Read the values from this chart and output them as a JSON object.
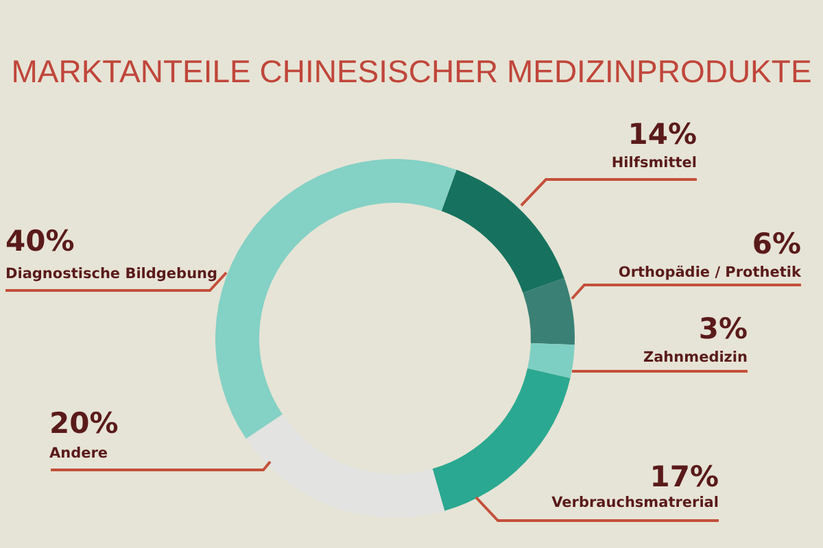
{
  "chart_data": {
    "type": "donut",
    "title": "MARKTANTEILE CHINESISCHER MEDIZINPRODUKTE",
    "categories": [
      "Hilfsmittel",
      "Orthopädie / Prothetik",
      "Zahnmedizin",
      "Verbrauchsmatrerial",
      "Andere",
      "Diagnostische Bildgebung"
    ],
    "values": [
      14,
      6,
      3,
      17,
      20,
      40
    ],
    "value_labels": [
      "14%",
      "6%",
      "3%",
      "17%",
      "20%",
      "40%"
    ],
    "colors": [
      "#16725f",
      "#3a8074",
      "#7ecfc3",
      "#2ba891",
      "#e3e3e1",
      "#84d1c5"
    ]
  }
}
